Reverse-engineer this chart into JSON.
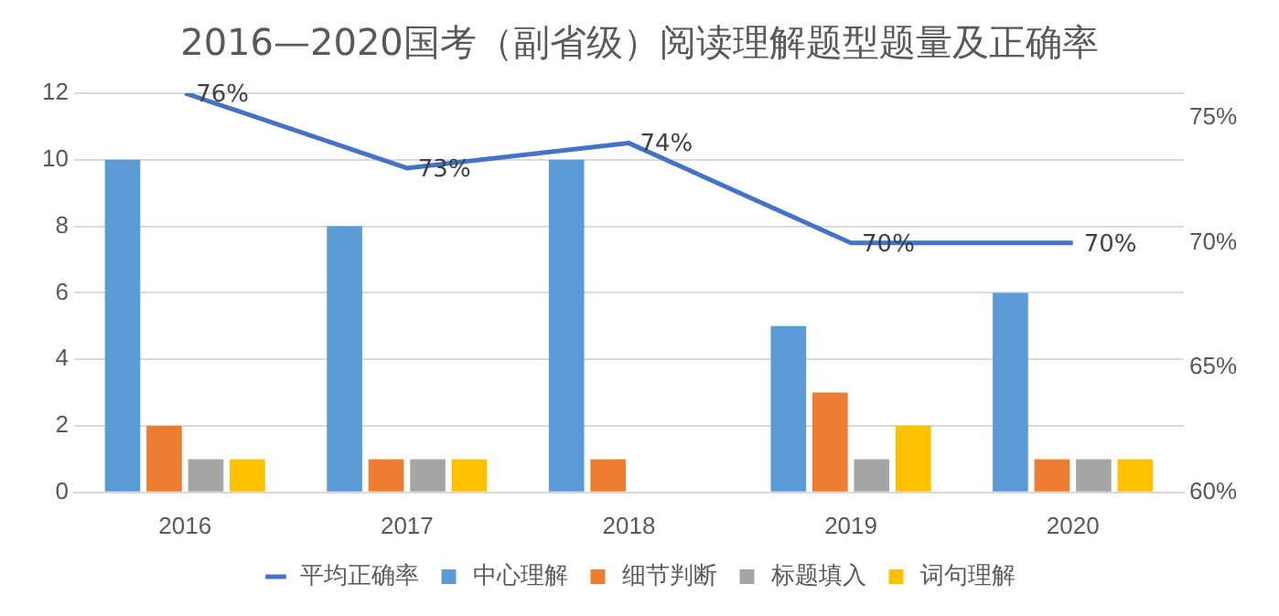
{
  "chart_data": {
    "type": "bar",
    "title": "2016—2020国考（副省级）阅读理解题型题量及正确率",
    "categories": [
      "2016",
      "2017",
      "2018",
      "2019",
      "2020"
    ],
    "series": [
      {
        "name": "中心理解",
        "color": "#5b9bd5",
        "values": [
          10,
          8,
          10,
          5,
          6
        ]
      },
      {
        "name": "细节判断",
        "color": "#ed7d31",
        "values": [
          2,
          1,
          1,
          3,
          1
        ]
      },
      {
        "name": "标题填入",
        "color": "#a5a5a5",
        "values": [
          1,
          1,
          0,
          1,
          1
        ]
      },
      {
        "name": "词句理解",
        "color": "#ffc000",
        "values": [
          1,
          1,
          0,
          2,
          1
        ]
      },
      {
        "name": "平均正确率",
        "type": "line",
        "axis": "y2",
        "color": "#4472c4",
        "values": [
          76,
          73,
          74,
          70,
          70
        ],
        "value_labels": [
          "76%",
          "73%",
          "74%",
          "70%",
          "70%"
        ]
      }
    ],
    "ylim": [
      0,
      12
    ],
    "yticks": [
      0,
      2,
      4,
      6,
      8,
      10,
      12
    ],
    "y2lim": [
      60,
      76
    ],
    "y2ticks": [
      {
        "value": 60,
        "label": "60%"
      },
      {
        "value": 65,
        "label": "65%"
      },
      {
        "value": 70,
        "label": "70%"
      },
      {
        "value": 75,
        "label": "75%"
      }
    ],
    "grid": "y",
    "legend": "bottom",
    "marker": "none",
    "line_style": "solid"
  }
}
